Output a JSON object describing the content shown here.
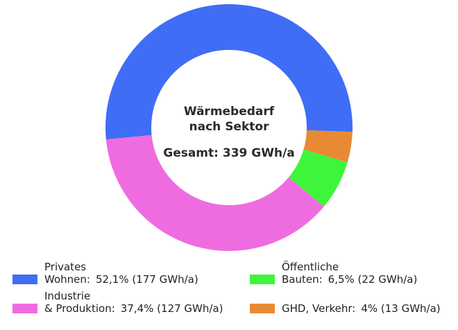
{
  "chart_data": {
    "type": "pie",
    "title": "Wärmebedarf\nnach Sektor",
    "center_label": "Gesamt:  339 GWh/a",
    "categories": [
      "Privates\nWohnen:",
      "Industrie\n& Produktion:",
      "Öffentliche\nBauten:",
      "GHD, Verkehr:"
    ],
    "values": [
      52.1,
      37.4,
      6.5,
      4
    ],
    "value_labels": [
      "52,1% (177 GWh/a)",
      "37,4% (127 GWh/a)",
      "6,5% (22 GWh/a)",
      "4% (13 GWh/a)"
    ],
    "colors": [
      "#3f6df5",
      "#ef6ce0",
      "#3ff53c",
      "#e88a33"
    ],
    "donut": true
  }
}
